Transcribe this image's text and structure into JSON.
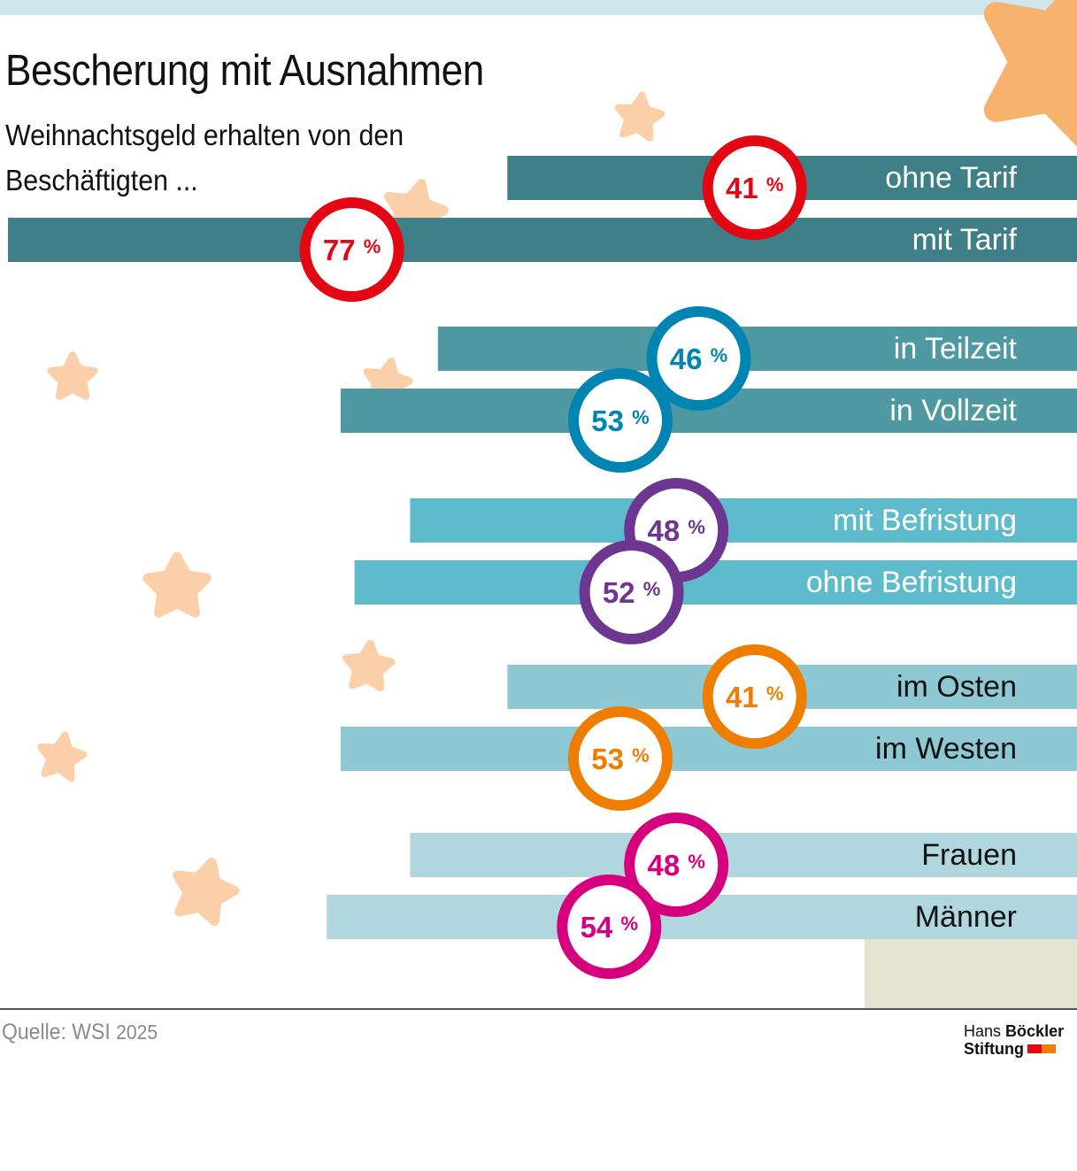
{
  "title": "Bescherung mit Ausnahmen",
  "subtitle": "Weihnachtsgeld erhalten von den Beschäftigten ...",
  "source": {
    "label": "Quelle: WSI",
    "year": "2025"
  },
  "logo": {
    "line1_regular": "Hans",
    "line1_bold": "Böckler",
    "line2": "Stiftung",
    "colors": [
      "#e30613",
      "#f07d00"
    ]
  },
  "colors": {
    "background": "#ffffff",
    "top_band": "#cfe6ee",
    "star": "#fbd0a8",
    "star_big": "#f7b36e",
    "corner_box": "#e4e2d0"
  },
  "chart_data": {
    "type": "bar",
    "orientation": "horizontal",
    "unit": "%",
    "ylim": [
      0,
      100
    ],
    "grid": false,
    "groups": [
      {
        "bar_color": "#3f7f88",
        "ring_color": "#e30613",
        "items": [
          {
            "label": "ohne Tarif",
            "value": 41
          },
          {
            "label": "mit Tarif",
            "value": 77
          }
        ]
      },
      {
        "bar_color": "#4f9aa2",
        "ring_color": "#0085b2",
        "items": [
          {
            "label": "in Teilzeit",
            "value": 46
          },
          {
            "label": "in Vollzeit",
            "value": 53
          }
        ]
      },
      {
        "bar_color": "#5dbbcb",
        "ring_color": "#6d3690",
        "items": [
          {
            "label": "mit Befristung",
            "value": 48
          },
          {
            "label": "ohne Befristung",
            "value": 52
          }
        ]
      },
      {
        "bar_color": "#8ec8d2",
        "ring_color": "#ef7d00",
        "items": [
          {
            "label": "im Osten",
            "value": 41
          },
          {
            "label": "im Westen",
            "value": 53
          }
        ]
      },
      {
        "bar_color": "#afd7dd",
        "ring_color": "#d6007e",
        "items": [
          {
            "label": "Frauen",
            "value": 48
          },
          {
            "label": "Männer",
            "value": 54
          }
        ]
      }
    ]
  }
}
